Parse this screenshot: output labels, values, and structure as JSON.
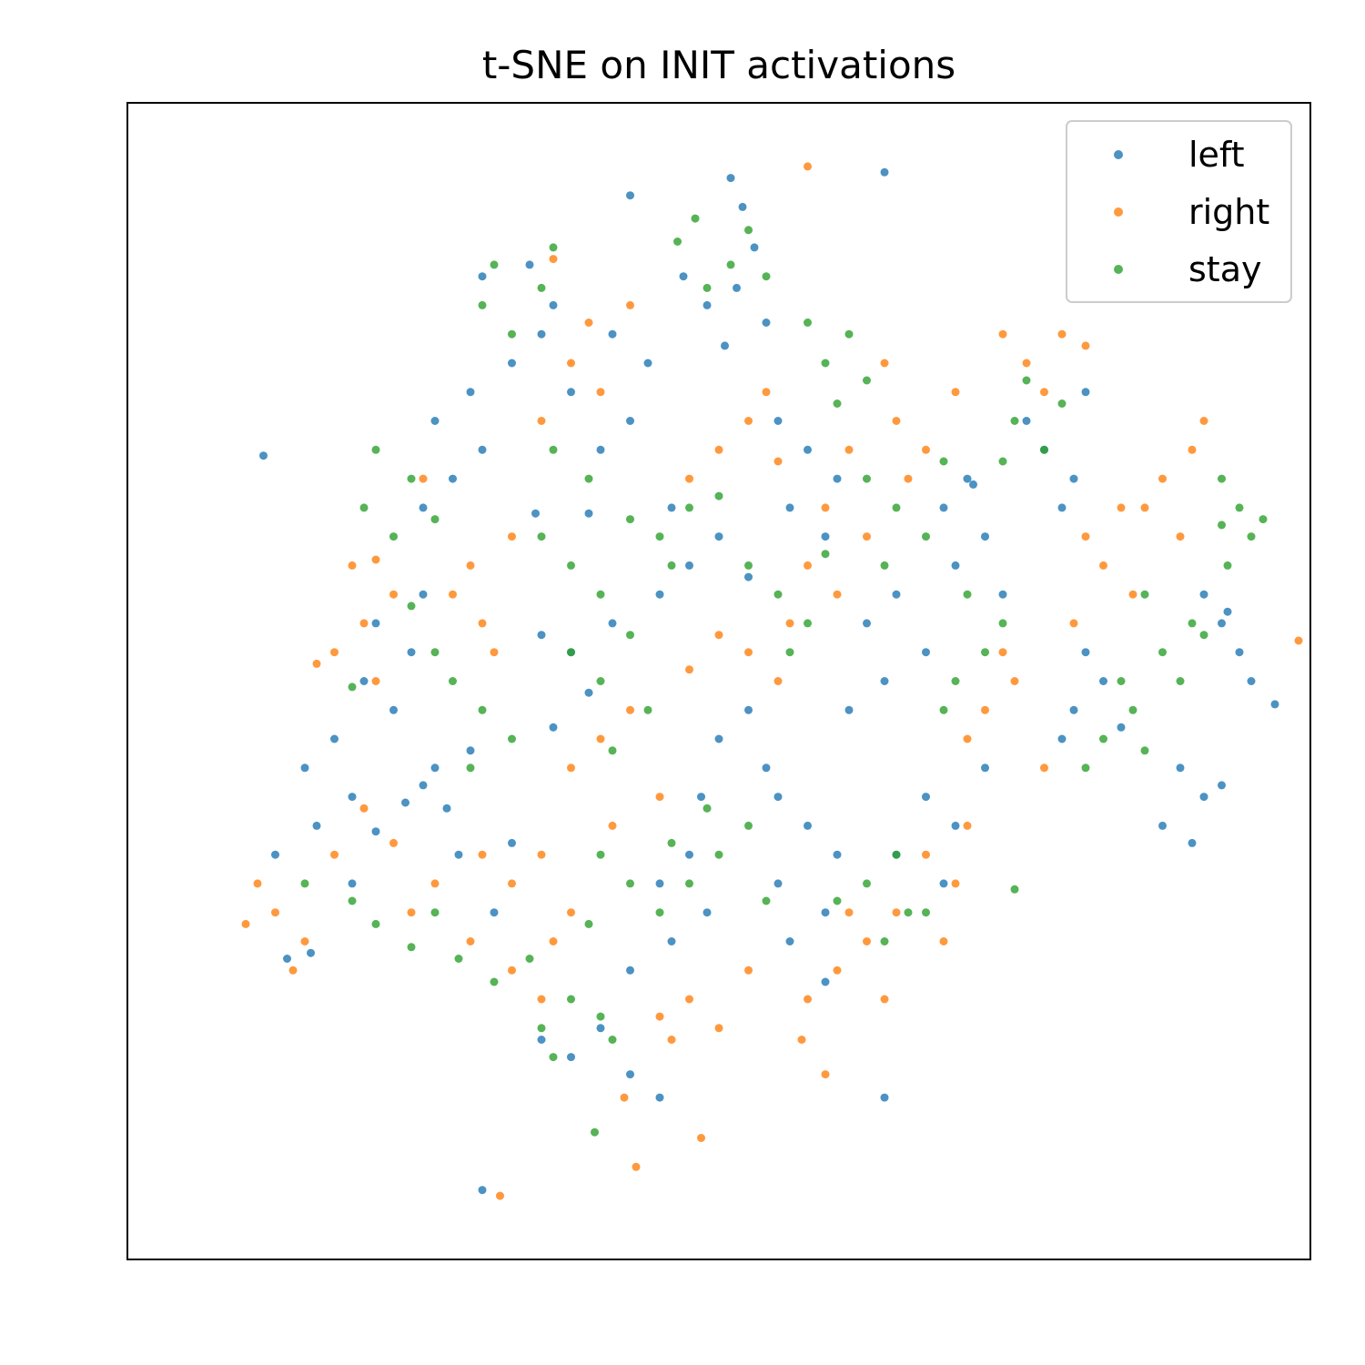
{
  "chart_data": {
    "type": "scatter",
    "title": "t-SNE on INIT activations",
    "xlabel": "",
    "ylabel": "",
    "xlim": [
      -100,
      100
    ],
    "ylim": [
      -100,
      100
    ],
    "grid": false,
    "ticks_visible": false,
    "legend_position": "top-right",
    "series": [
      {
        "name": "left",
        "color": "#1f77b4",
        "points": [
          [
            2,
            87
          ],
          [
            -15,
            84
          ],
          [
            28,
            88
          ],
          [
            4,
            82
          ],
          [
            6,
            75
          ],
          [
            -22,
            29
          ],
          [
            -31,
            29
          ],
          [
            -77,
            39
          ],
          [
            43,
            34
          ],
          [
            94,
            -4
          ],
          [
            -73,
            -48
          ],
          [
            -69,
            -47
          ],
          [
            18,
            -52
          ],
          [
            28,
            -72
          ],
          [
            -40,
            -88
          ],
          [
            -50,
            -18
          ],
          [
            -46,
            -22
          ],
          [
            -53,
            -21
          ],
          [
            -48,
            -15
          ],
          [
            -42,
            -12
          ],
          [
            -58,
            -26
          ],
          [
            -44,
            -30
          ],
          [
            -35,
            -28
          ],
          [
            -62,
            -35
          ],
          [
            -38,
            -40
          ],
          [
            -25,
            5
          ],
          [
            -30,
            8
          ],
          [
            -22,
            -2
          ],
          [
            -18,
            10
          ],
          [
            -28,
            -8
          ],
          [
            -10,
            15
          ],
          [
            -5,
            20
          ],
          [
            0,
            25
          ],
          [
            -8,
            30
          ],
          [
            5,
            18
          ],
          [
            -20,
            40
          ],
          [
            -15,
            45
          ],
          [
            -25,
            50
          ],
          [
            -12,
            55
          ],
          [
            -18,
            60
          ],
          [
            -30,
            60
          ],
          [
            -35,
            55
          ],
          [
            -28,
            65
          ],
          [
            -40,
            70
          ],
          [
            -32,
            72
          ],
          [
            -2,
            65
          ],
          [
            3,
            68
          ],
          [
            -6,
            70
          ],
          [
            8,
            62
          ],
          [
            1,
            58
          ],
          [
            10,
            45
          ],
          [
            15,
            40
          ],
          [
            20,
            35
          ],
          [
            12,
            30
          ],
          [
            18,
            25
          ],
          [
            25,
            10
          ],
          [
            30,
            15
          ],
          [
            35,
            5
          ],
          [
            28,
            0
          ],
          [
            22,
            -5
          ],
          [
            40,
            20
          ],
          [
            45,
            25
          ],
          [
            38,
            30
          ],
          [
            42,
            35
          ],
          [
            48,
            15
          ],
          [
            55,
            40
          ],
          [
            60,
            35
          ],
          [
            58,
            30
          ],
          [
            52,
            45
          ],
          [
            62,
            50
          ],
          [
            60,
            -5
          ],
          [
            65,
            0
          ],
          [
            62,
            5
          ],
          [
            58,
            -10
          ],
          [
            68,
            -8
          ],
          [
            35,
            -20
          ],
          [
            40,
            -25
          ],
          [
            30,
            -30
          ],
          [
            45,
            -15
          ],
          [
            38,
            -35
          ],
          [
            15,
            -25
          ],
          [
            20,
            -30
          ],
          [
            10,
            -35
          ],
          [
            18,
            -40
          ],
          [
            12,
            -45
          ],
          [
            -5,
            -30
          ],
          [
            -10,
            -35
          ],
          [
            -2,
            -40
          ],
          [
            -8,
            -45
          ],
          [
            -15,
            -50
          ],
          [
            -55,
            -5
          ],
          [
            -60,
            0
          ],
          [
            -52,
            5
          ],
          [
            -58,
            10
          ],
          [
            -50,
            15
          ],
          [
            -65,
            -10
          ],
          [
            -70,
            -15
          ],
          [
            -62,
            -20
          ],
          [
            -68,
            -25
          ],
          [
            -75,
            -30
          ],
          [
            5,
            -5
          ],
          [
            0,
            -10
          ],
          [
            8,
            -15
          ],
          [
            -3,
            -20
          ],
          [
            10,
            -20
          ],
          [
            -45,
            35
          ],
          [
            -40,
            40
          ],
          [
            -48,
            45
          ],
          [
            -42,
            50
          ],
          [
            -50,
            30
          ],
          [
            85,
            10
          ],
          [
            88,
            5
          ],
          [
            82,
            15
          ],
          [
            90,
            0
          ],
          [
            86,
            12
          ],
          [
            78,
            -15
          ],
          [
            82,
            -20
          ],
          [
            75,
            -25
          ],
          [
            85,
            -18
          ],
          [
            80,
            -28
          ],
          [
            -20,
            -60
          ],
          [
            -25,
            -65
          ],
          [
            -15,
            -68
          ],
          [
            -30,
            -62
          ],
          [
            -10,
            -72
          ]
        ]
      },
      {
        "name": "right",
        "color": "#ff7f0e",
        "points": [
          [
            15,
            89
          ],
          [
            -28,
            73
          ],
          [
            -50,
            35
          ],
          [
            -58,
            21
          ],
          [
            -68,
            3
          ],
          [
            98,
            7
          ],
          [
            -3,
            -79
          ],
          [
            -14,
            -84
          ],
          [
            -37,
            -89
          ],
          [
            -16,
            -72
          ],
          [
            14,
            -62
          ],
          [
            18,
            -68
          ],
          [
            -60,
            -22
          ],
          [
            -55,
            -28
          ],
          [
            -65,
            -30
          ],
          [
            -48,
            -35
          ],
          [
            -52,
            -40
          ],
          [
            -42,
            -45
          ],
          [
            -35,
            -50
          ],
          [
            -30,
            -55
          ],
          [
            -20,
            -10
          ],
          [
            -15,
            -5
          ],
          [
            -25,
            -15
          ],
          [
            -10,
            -20
          ],
          [
            -18,
            -25
          ],
          [
            0,
            40
          ],
          [
            5,
            45
          ],
          [
            -5,
            35
          ],
          [
            10,
            38
          ],
          [
            8,
            50
          ],
          [
            15,
            20
          ],
          [
            20,
            15
          ],
          [
            25,
            25
          ],
          [
            18,
            30
          ],
          [
            22,
            40
          ],
          [
            30,
            45
          ],
          [
            35,
            40
          ],
          [
            32,
            35
          ],
          [
            40,
            50
          ],
          [
            28,
            55
          ],
          [
            -40,
            10
          ],
          [
            -45,
            15
          ],
          [
            -38,
            5
          ],
          [
            -42,
            20
          ],
          [
            -35,
            25
          ],
          [
            -60,
            10
          ],
          [
            -65,
            5
          ],
          [
            -55,
            15
          ],
          [
            -62,
            20
          ],
          [
            -58,
            0
          ],
          [
            -25,
            55
          ],
          [
            -20,
            50
          ],
          [
            -30,
            45
          ],
          [
            -22,
            62
          ],
          [
            -15,
            65
          ],
          [
            45,
            -5
          ],
          [
            50,
            0
          ],
          [
            42,
            -10
          ],
          [
            48,
            5
          ],
          [
            55,
            -15
          ],
          [
            65,
            20
          ],
          [
            70,
            15
          ],
          [
            62,
            25
          ],
          [
            68,
            30
          ],
          [
            60,
            10
          ],
          [
            52,
            55
          ],
          [
            58,
            60
          ],
          [
            48,
            60
          ],
          [
            55,
            50
          ],
          [
            62,
            58
          ],
          [
            75,
            35
          ],
          [
            80,
            40
          ],
          [
            72,
            30
          ],
          [
            78,
            25
          ],
          [
            82,
            45
          ],
          [
            20,
            -50
          ],
          [
            25,
            -45
          ],
          [
            15,
            -55
          ],
          [
            28,
            -55
          ],
          [
            22,
            -40
          ],
          [
            -5,
            -55
          ],
          [
            0,
            -60
          ],
          [
            -10,
            -58
          ],
          [
            5,
            -50
          ],
          [
            -8,
            -62
          ],
          [
            -75,
            -40
          ],
          [
            -70,
            -45
          ],
          [
            -78,
            -35
          ],
          [
            -72,
            -50
          ],
          [
            -80,
            -42
          ],
          [
            5,
            5
          ],
          [
            10,
            0
          ],
          [
            0,
            8
          ],
          [
            12,
            10
          ],
          [
            -5,
            2
          ],
          [
            35,
            -30
          ],
          [
            40,
            -35
          ],
          [
            30,
            -40
          ],
          [
            42,
            -25
          ],
          [
            38,
            -45
          ],
          [
            -30,
            -30
          ],
          [
            -35,
            -35
          ],
          [
            -25,
            -40
          ],
          [
            -40,
            -30
          ],
          [
            -28,
            -45
          ]
        ]
      },
      {
        "name": "stay",
        "color": "#2ca02c",
        "points": [
          [
            -7,
            76
          ],
          [
            85,
            27
          ],
          [
            -52,
            13
          ],
          [
            -62,
            -1
          ],
          [
            32,
            -40
          ],
          [
            -21,
            -78
          ],
          [
            50,
            -36
          ],
          [
            -58,
            -42
          ],
          [
            -52,
            -46
          ],
          [
            -48,
            -40
          ],
          [
            -62,
            -38
          ],
          [
            -70,
            -35
          ],
          [
            -44,
            -48
          ],
          [
            -38,
            -52
          ],
          [
            -32,
            -48
          ],
          [
            -20,
            0
          ],
          [
            -15,
            8
          ],
          [
            -25,
            5
          ],
          [
            -12,
            -5
          ],
          [
            -18,
            -12
          ],
          [
            -10,
            25
          ],
          [
            -5,
            30
          ],
          [
            -15,
            28
          ],
          [
            0,
            32
          ],
          [
            -8,
            20
          ],
          [
            -20,
            15
          ],
          [
            -25,
            20
          ],
          [
            -30,
            25
          ],
          [
            -22,
            35
          ],
          [
            -28,
            40
          ],
          [
            10,
            15
          ],
          [
            15,
            10
          ],
          [
            5,
            20
          ],
          [
            18,
            22
          ],
          [
            12,
            5
          ],
          [
            30,
            30
          ],
          [
            35,
            25
          ],
          [
            28,
            20
          ],
          [
            38,
            38
          ],
          [
            25,
            35
          ],
          [
            18,
            55
          ],
          [
            22,
            60
          ],
          [
            15,
            62
          ],
          [
            25,
            52
          ],
          [
            20,
            48
          ],
          [
            -40,
            -5
          ],
          [
            -45,
            0
          ],
          [
            -35,
            -10
          ],
          [
            -48,
            5
          ],
          [
            -42,
            -15
          ],
          [
            -55,
            25
          ],
          [
            -60,
            30
          ],
          [
            -52,
            35
          ],
          [
            -48,
            28
          ],
          [
            -58,
            40
          ],
          [
            40,
            0
          ],
          [
            45,
            5
          ],
          [
            38,
            -5
          ],
          [
            48,
            10
          ],
          [
            42,
            15
          ],
          [
            65,
            -10
          ],
          [
            70,
            -5
          ],
          [
            62,
            -15
          ],
          [
            68,
            0
          ],
          [
            72,
            -12
          ],
          [
            75,
            5
          ],
          [
            80,
            10
          ],
          [
            72,
            15
          ],
          [
            78,
            0
          ],
          [
            82,
            8
          ],
          [
            50,
            45
          ],
          [
            55,
            40
          ],
          [
            48,
            38
          ],
          [
            58,
            48
          ],
          [
            52,
            52
          ],
          [
            25,
            -35
          ],
          [
            30,
            -30
          ],
          [
            20,
            -38
          ],
          [
            28,
            -45
          ],
          [
            35,
            -40
          ],
          [
            0,
            -30
          ],
          [
            5,
            -25
          ],
          [
            -5,
            -35
          ],
          [
            8,
            -38
          ],
          [
            -2,
            -22
          ],
          [
            -25,
            -55
          ],
          [
            -30,
            -60
          ],
          [
            -20,
            -58
          ],
          [
            -28,
            -65
          ],
          [
            -18,
            -62
          ],
          [
            -15,
            -35
          ],
          [
            -10,
            -40
          ],
          [
            -20,
            -30
          ],
          [
            -8,
            -28
          ],
          [
            -22,
            -42
          ],
          [
            -35,
            60
          ],
          [
            -30,
            68
          ],
          [
            -40,
            65
          ],
          [
            -28,
            75
          ],
          [
            -38,
            72
          ],
          [
            2,
            72
          ],
          [
            8,
            70
          ],
          [
            -2,
            68
          ],
          [
            5,
            78
          ],
          [
            -4,
            80
          ],
          [
            88,
            30
          ],
          [
            90,
            25
          ],
          [
            85,
            35
          ],
          [
            92,
            28
          ],
          [
            86,
            20
          ]
        ]
      }
    ]
  }
}
